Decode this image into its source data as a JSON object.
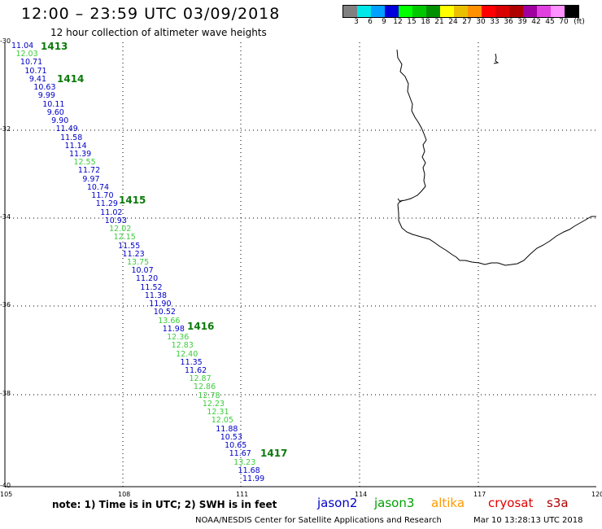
{
  "header": {
    "title": "12:00 – 23:59 UTC 03/09/2018",
    "subtitle": "12 hour collection of altimeter wave heights"
  },
  "color_scale": {
    "colors": [
      "#808080",
      "#00e8e8",
      "#00a0ff",
      "#0000dc",
      "#00ff00",
      "#00c800",
      "#009000",
      "#ffff00",
      "#e8c000",
      "#ff9000",
      "#ff0000",
      "#d80000",
      "#b00000",
      "#a000a0",
      "#e040e0",
      "#ff90ff",
      "#000000"
    ],
    "labels": [
      "3",
      "6",
      "9",
      "12",
      "15",
      "18",
      "21",
      "24",
      "27",
      "30",
      "33",
      "36",
      "39",
      "42",
      "45",
      "70",
      "(ft)"
    ]
  },
  "axes": {
    "lat_labels": [
      "-30",
      "-32",
      "-34",
      "-36",
      "-38",
      "-40"
    ],
    "lon_labels": [
      "105",
      "108",
      "111",
      "114",
      "117",
      "120"
    ]
  },
  "observations": [
    {
      "text": "11.04",
      "color": "#0000c8"
    },
    {
      "text": "12.03",
      "color": "#3ccc3c"
    },
    {
      "text": "10.71",
      "color": "#0000c8"
    },
    {
      "text": "10.71",
      "color": "#0000c8"
    },
    {
      "text": "9.41",
      "color": "#0000c8"
    },
    {
      "text": "10.63",
      "color": "#0000c8"
    },
    {
      "text": "9.99",
      "color": "#0000c8"
    },
    {
      "text": "10.11",
      "color": "#0000c8"
    },
    {
      "text": "9.60",
      "color": "#0000c8"
    },
    {
      "text": "9.90",
      "color": "#0000c8"
    },
    {
      "text": "11.49",
      "color": "#0000c8"
    },
    {
      "text": "11.58",
      "color": "#0000c8"
    },
    {
      "text": "11.14",
      "color": "#0000c8"
    },
    {
      "text": "11.39",
      "color": "#0000c8"
    },
    {
      "text": "12.55",
      "color": "#3ccc3c"
    },
    {
      "text": "11.72",
      "color": "#0000c8"
    },
    {
      "text": "9.97",
      "color": "#0000c8"
    },
    {
      "text": "10.74",
      "color": "#0000c8"
    },
    {
      "text": "11.70",
      "color": "#0000c8"
    },
    {
      "text": "11.29",
      "color": "#0000c8"
    },
    {
      "text": "11.02",
      "color": "#0000c8"
    },
    {
      "text": "10.93",
      "color": "#0000c8"
    },
    {
      "text": "12.02",
      "color": "#3ccc3c"
    },
    {
      "text": "12.15",
      "color": "#3ccc3c"
    },
    {
      "text": "11.55",
      "color": "#0000c8"
    },
    {
      "text": "11.23",
      "color": "#0000c8"
    },
    {
      "text": "13.75",
      "color": "#3ccc3c"
    },
    {
      "text": "10.07",
      "color": "#0000c8"
    },
    {
      "text": "11.20",
      "color": "#0000c8"
    },
    {
      "text": "11.52",
      "color": "#0000c8"
    },
    {
      "text": "11.38",
      "color": "#0000c8"
    },
    {
      "text": "11.90",
      "color": "#0000c8"
    },
    {
      "text": "10.52",
      "color": "#0000c8"
    },
    {
      "text": "13.66",
      "color": "#3ccc3c"
    },
    {
      "text": "11.98",
      "color": "#0000c8"
    },
    {
      "text": "12.36",
      "color": "#3ccc3c"
    },
    {
      "text": "12.83",
      "color": "#3ccc3c"
    },
    {
      "text": "12.40",
      "color": "#3ccc3c"
    },
    {
      "text": "11.35",
      "color": "#0000c8"
    },
    {
      "text": "11.62",
      "color": "#0000c8"
    },
    {
      "text": "12.87",
      "color": "#3ccc3c"
    },
    {
      "text": "12.86",
      "color": "#3ccc3c"
    },
    {
      "text": "12.78",
      "color": "#3ccc3c"
    },
    {
      "text": "12.23",
      "color": "#3ccc3c"
    },
    {
      "text": "12.31",
      "color": "#3ccc3c"
    },
    {
      "text": "12.05",
      "color": "#3ccc3c"
    },
    {
      "text": "11.88",
      "color": "#0000c8"
    },
    {
      "text": "10.53",
      "color": "#0000c8"
    },
    {
      "text": "10.65",
      "color": "#0000c8"
    },
    {
      "text": "11.67",
      "color": "#0000c8"
    },
    {
      "text": "13.23",
      "color": "#3ccc3c"
    },
    {
      "text": "11.68",
      "color": "#0000c8"
    },
    {
      "text": "11.99",
      "color": "#0000c8"
    }
  ],
  "pass_labels": [
    "1413",
    "1414",
    "1415",
    "1416",
    "1417"
  ],
  "note": "note:  1) Time is in UTC;  2) SWH is in feet",
  "satellites": [
    {
      "name": "jason2",
      "color": "#0000c8"
    },
    {
      "name": "jason3",
      "color": "#00a000"
    },
    {
      "name": "altika",
      "color": "#ff9900"
    },
    {
      "name": "cryosat",
      "color": "#e00000"
    },
    {
      "name": "s3a",
      "color": "#b00000"
    }
  ],
  "footer": {
    "credit": "NOAA/NESDIS Center for Satellite Applications and Research",
    "timestamp": "Mar 10 13:28:13 UTC 2018"
  }
}
